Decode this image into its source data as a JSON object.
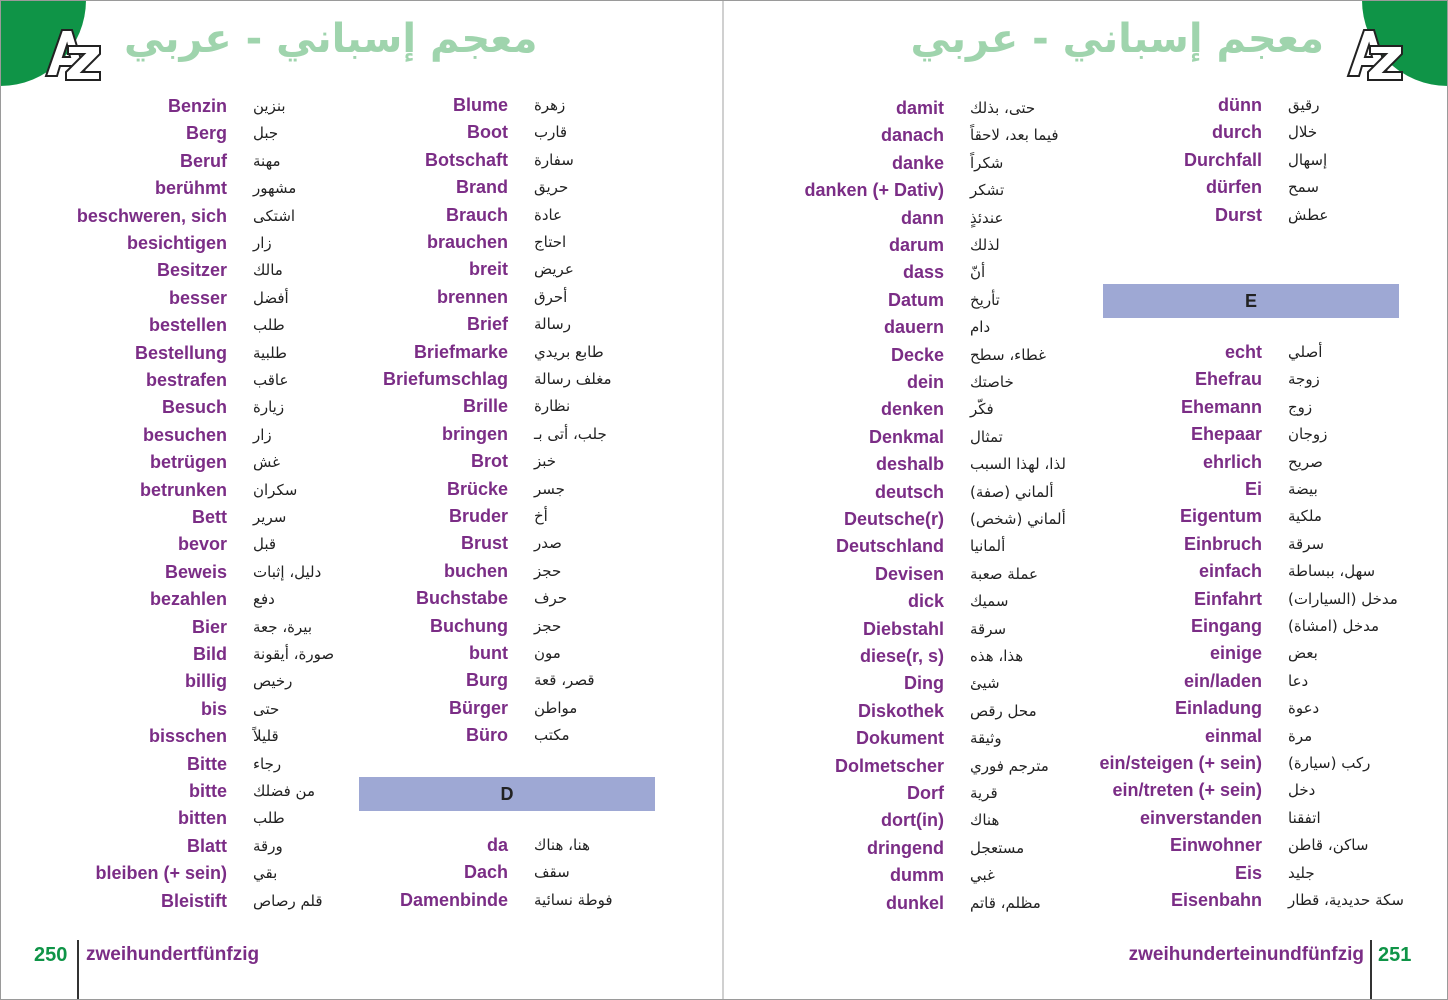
{
  "left_page": {
    "header_title": "معجم إسباني - عربي",
    "az_icon": "A-Z logo",
    "page_number": "250",
    "page_word": "zweihundertfünfzig",
    "columns": [
      {
        "entries": [
          {
            "de": "Benzin",
            "ar": "بنزين"
          },
          {
            "de": "Berg",
            "ar": "جبل"
          },
          {
            "de": "Beruf",
            "ar": "مهنة"
          },
          {
            "de": "berühmt",
            "ar": "مشهور"
          },
          {
            "de": "beschweren, sich",
            "ar": "اشتكى"
          },
          {
            "de": "besichtigen",
            "ar": "زار"
          },
          {
            "de": "Besitzer",
            "ar": "مالك"
          },
          {
            "de": "besser",
            "ar": "أفضل"
          },
          {
            "de": "bestellen",
            "ar": "طلب"
          },
          {
            "de": "Bestellung",
            "ar": "طلبية"
          },
          {
            "de": "bestrafen",
            "ar": "عاقب"
          },
          {
            "de": "Besuch",
            "ar": "زيارة"
          },
          {
            "de": "besuchen",
            "ar": "زار"
          },
          {
            "de": "betrügen",
            "ar": "غش"
          },
          {
            "de": "betrunken",
            "ar": "سكران"
          },
          {
            "de": "Bett",
            "ar": "سرير"
          },
          {
            "de": "bevor",
            "ar": "قبل"
          },
          {
            "de": "Beweis",
            "ar": "دليل، إثبات"
          },
          {
            "de": "bezahlen",
            "ar": "دفع"
          },
          {
            "de": "Bier",
            "ar": "بيرة، جعة"
          },
          {
            "de": "Bild",
            "ar": "صورة، أيقونة"
          },
          {
            "de": "billig",
            "ar": "رخيص"
          },
          {
            "de": "bis",
            "ar": "حتى"
          },
          {
            "de": "bisschen",
            "ar": "قليلاً"
          },
          {
            "de": "Bitte",
            "ar": "رجاء"
          },
          {
            "de": "bitte",
            "ar": "من فضلك"
          },
          {
            "de": "bitten",
            "ar": "طلب"
          },
          {
            "de": "Blatt",
            "ar": "ورقة"
          },
          {
            "de": "bleiben (+ sein)",
            "ar": "بقي"
          },
          {
            "de": "Bleistift",
            "ar": "قلم رصاص"
          }
        ]
      },
      {
        "entries": [
          {
            "de": "Blume",
            "ar": "زهرة"
          },
          {
            "de": "Boot",
            "ar": "قارب"
          },
          {
            "de": "Botschaft",
            "ar": "سفارة"
          },
          {
            "de": "Brand",
            "ar": "حريق"
          },
          {
            "de": "Brauch",
            "ar": "عادة"
          },
          {
            "de": "brauchen",
            "ar": "احتاج"
          },
          {
            "de": "breit",
            "ar": "عريض"
          },
          {
            "de": "brennen",
            "ar": "أحرق"
          },
          {
            "de": "Brief",
            "ar": "رسالة"
          },
          {
            "de": "Briefmarke",
            "ar": "طابع بريدي"
          },
          {
            "de": "Briefumschlag",
            "ar": "مغلف رسالة"
          },
          {
            "de": "Brille",
            "ar": "نظارة"
          },
          {
            "de": "bringen",
            "ar": "جلب، أتى بـ"
          },
          {
            "de": "Brot",
            "ar": "خبز"
          },
          {
            "de": "Brücke",
            "ar": "جسر"
          },
          {
            "de": "Bruder",
            "ar": "أخ"
          },
          {
            "de": "Brust",
            "ar": "صدر"
          },
          {
            "de": "buchen",
            "ar": "حجز"
          },
          {
            "de": "Buchstabe",
            "ar": "حرف"
          },
          {
            "de": "Buchung",
            "ar": "حجز"
          },
          {
            "de": "bunt",
            "ar": "مون"
          },
          {
            "de": "Burg",
            "ar": "قصر، قعة"
          },
          {
            "de": "Bürger",
            "ar": "مواطن"
          },
          {
            "de": "Büro",
            "ar": "مكتب"
          }
        ],
        "section_letter": "D",
        "entries2": [
          {
            "de": "da",
            "ar": "هنا، هناك"
          },
          {
            "de": "Dach",
            "ar": "سقف"
          },
          {
            "de": "Damenbinde",
            "ar": "فوطة نسائية"
          }
        ]
      }
    ]
  },
  "right_page": {
    "header_title": "معجم إسباني - عربي",
    "az_icon": "A-Z logo",
    "page_number": "251",
    "page_word": "zweihunderteinundfünfzig",
    "columns": [
      {
        "entries": [
          {
            "de": "damit",
            "ar": "حتى، بذلك"
          },
          {
            "de": "danach",
            "ar": "فيما بعد، لاحقاً"
          },
          {
            "de": "danke",
            "ar": "شكراً"
          },
          {
            "de": "danken (+ Dativ)",
            "ar": "تشكر"
          },
          {
            "de": "dann",
            "ar": "عندئذٍ"
          },
          {
            "de": "darum",
            "ar": "لذلك"
          },
          {
            "de": "dass",
            "ar": "أنّ"
          },
          {
            "de": "Datum",
            "ar": "تأريخ"
          },
          {
            "de": "dauern",
            "ar": "دام"
          },
          {
            "de": "Decke",
            "ar": "غطاء، سطح"
          },
          {
            "de": "dein",
            "ar": "خاصتك"
          },
          {
            "de": "denken",
            "ar": "فكّر"
          },
          {
            "de": "Denkmal",
            "ar": "تمثال"
          },
          {
            "de": "deshalb",
            "ar": "لذا، لهذا السبب"
          },
          {
            "de": "deutsch",
            "ar": "ألماني (صفة)"
          },
          {
            "de": "Deutsche(r)",
            "ar": "ألماني (شخص)"
          },
          {
            "de": "Deutschland",
            "ar": "ألمانيا"
          },
          {
            "de": "Devisen",
            "ar": "عملة صعبة"
          },
          {
            "de": "dick",
            "ar": "سميك"
          },
          {
            "de": "Diebstahl",
            "ar": "سرقة"
          },
          {
            "de": "diese(r, s)",
            "ar": "هذا، هذه"
          },
          {
            "de": "Ding",
            "ar": "شيئ"
          },
          {
            "de": "Diskothek",
            "ar": "محل رقص"
          },
          {
            "de": "Dokument",
            "ar": "وثيقة"
          },
          {
            "de": "Dolmetscher",
            "ar": "مترجم فوري"
          },
          {
            "de": "Dorf",
            "ar": "قرية"
          },
          {
            "de": "dort(in)",
            "ar": "هناك"
          },
          {
            "de": "dringend",
            "ar": "مستعجل"
          },
          {
            "de": "dumm",
            "ar": "غبي"
          },
          {
            "de": "dunkel",
            "ar": "مظلم، قاتم"
          }
        ]
      },
      {
        "entries": [
          {
            "de": "dünn",
            "ar": "رقيق"
          },
          {
            "de": "durch",
            "ar": "خلال"
          },
          {
            "de": "Durchfall",
            "ar": "إسهال"
          },
          {
            "de": "dürfen",
            "ar": "سمح"
          },
          {
            "de": "Durst",
            "ar": "عطش"
          }
        ],
        "section_letter": "E",
        "entries2": [
          {
            "de": "echt",
            "ar": "أصلي"
          },
          {
            "de": "Ehefrau",
            "ar": "زوجة"
          },
          {
            "de": "Ehemann",
            "ar": "زوج"
          },
          {
            "de": "Ehepaar",
            "ar": "زوجان"
          },
          {
            "de": "ehrlich",
            "ar": "صريح"
          },
          {
            "de": "Ei",
            "ar": "بيضة"
          },
          {
            "de": "Eigentum",
            "ar": "ملكية"
          },
          {
            "de": "Einbruch",
            "ar": "سرقة"
          },
          {
            "de": "einfach",
            "ar": "سهل، ببساطة"
          },
          {
            "de": "Einfahrt",
            "ar": "مدخل (السيارات)"
          },
          {
            "de": "Eingang",
            "ar": "مدخل (امشاة)"
          },
          {
            "de": "einige",
            "ar": "بعض"
          },
          {
            "de": "ein/laden",
            "ar": "دعا"
          },
          {
            "de": "Einladung",
            "ar": "دعوة"
          },
          {
            "de": "einmal",
            "ar": "مرة"
          },
          {
            "de": "ein/steigen (+ sein)",
            "ar": "ركب (سيارة)"
          },
          {
            "de": "ein/treten (+ sein)",
            "ar": "دخل"
          },
          {
            "de": "einverstanden",
            "ar": "اتفقنا"
          },
          {
            "de": "Einwohner",
            "ar": "ساكن، قاطن"
          },
          {
            "de": "Eis",
            "ar": "جليد"
          },
          {
            "de": "Eisenbahn",
            "ar": "سكة حديدية، قطار"
          }
        ]
      }
    ]
  },
  "colors": {
    "green": "#0f9447",
    "title_green": "#9fd4ad",
    "purple": "#7b2d86",
    "band": "#9ea8d4"
  }
}
